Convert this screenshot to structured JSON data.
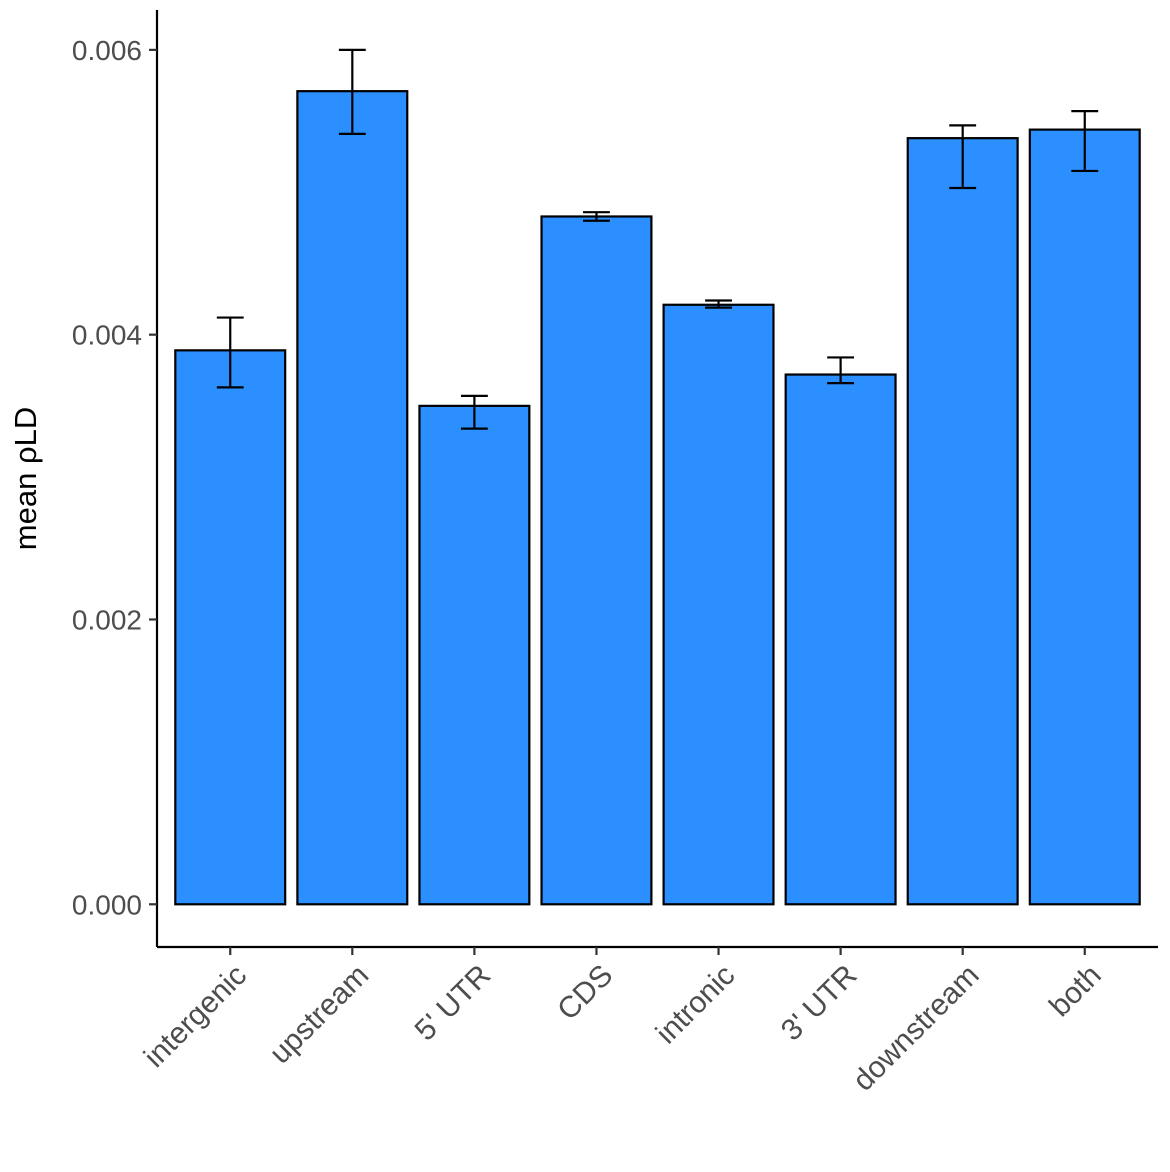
{
  "chart_data": {
    "type": "bar",
    "xlabel": "",
    "ylabel": "mean ρLD",
    "categories": [
      "intergenic",
      "upstream",
      "5' UTR",
      "CDS",
      "intronic",
      "3' UTR",
      "downstream",
      "both"
    ],
    "values": [
      0.00389,
      0.00571,
      0.0035,
      0.00483,
      0.00421,
      0.00372,
      0.00538,
      0.00544
    ],
    "error_low": [
      0.00363,
      0.00541,
      0.00334,
      0.0048,
      0.00419,
      0.00366,
      0.00503,
      0.00515
    ],
    "error_high": [
      0.00412,
      0.006,
      0.00357,
      0.00486,
      0.00424,
      0.00384,
      0.00547,
      0.00557
    ],
    "ylim": [
      -0.0003,
      0.00628
    ],
    "yticks": [
      0,
      0.002,
      0.004,
      0.006
    ],
    "ytick_labels": [
      "0.000",
      "0.002",
      "0.004",
      "0.006"
    ],
    "grid": false,
    "legend": "none",
    "bar_color": "#2B8FFF",
    "bar_outline": "#000000"
  }
}
